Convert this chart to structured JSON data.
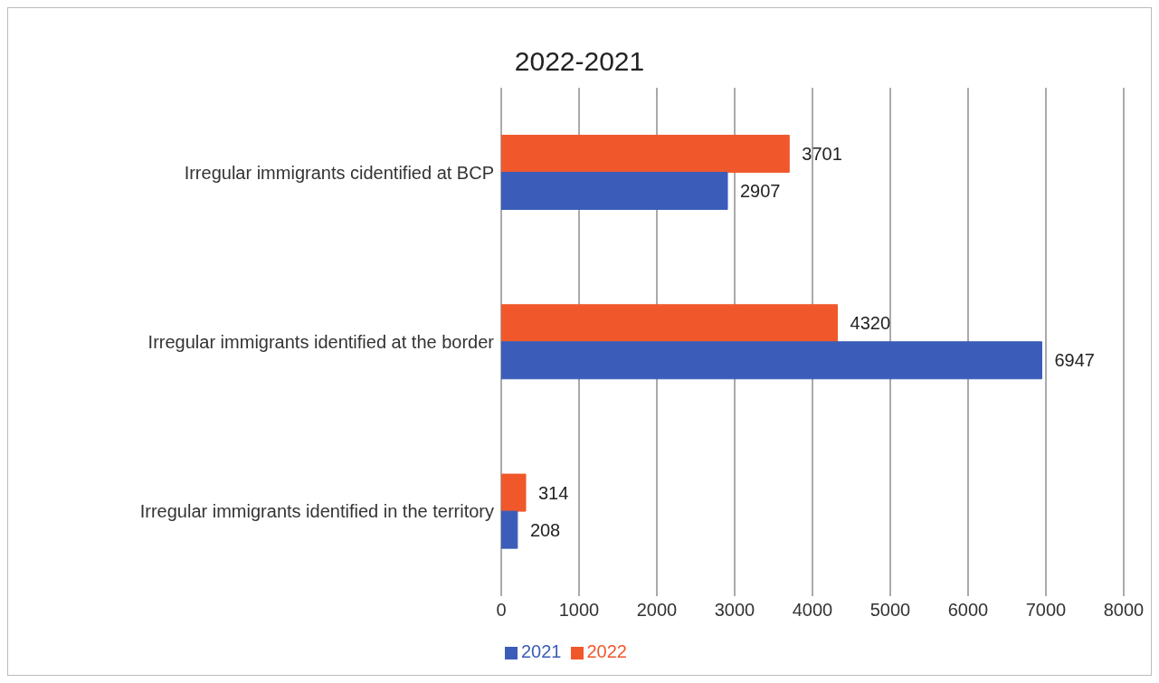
{
  "chart_data": {
    "type": "bar",
    "orientation": "horizontal",
    "title": "2022-2021",
    "categories": [
      "Irregular immigrants cidentified at BCP",
      "Irregular immigrants identified at the border",
      "Irregular immigrants identified in the territory"
    ],
    "series": [
      {
        "name": "2022",
        "color": "#f0582c",
        "values": [
          3701,
          4320,
          314
        ]
      },
      {
        "name": "2021",
        "color": "#3b5cb8",
        "values": [
          2907,
          6947,
          208
        ]
      }
    ],
    "xlim": [
      0,
      8000
    ],
    "xticks": [
      0,
      1000,
      2000,
      3000,
      4000,
      5000,
      6000,
      7000,
      8000
    ],
    "grid": "x",
    "legend": "bottom",
    "data_labels": true
  }
}
